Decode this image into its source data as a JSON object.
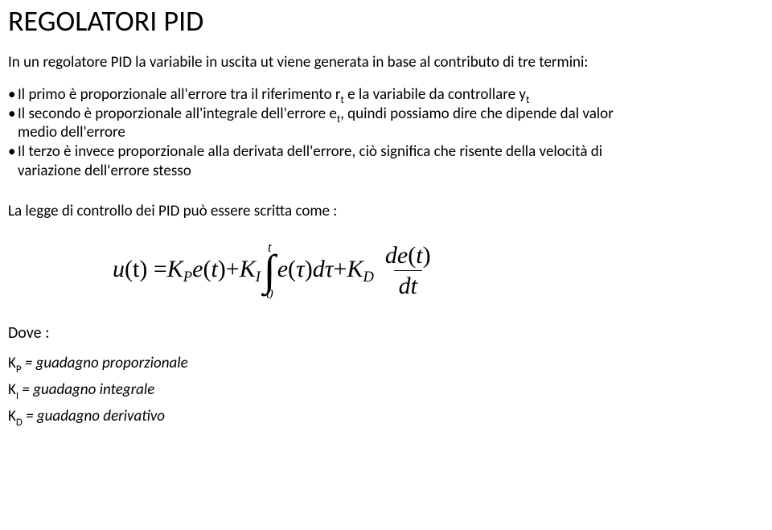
{
  "title": "REGOLATORI PID",
  "intro": "In un regolatore PID la variabile in uscita ut viene generata in base al contributo di tre termini:",
  "bullets": {
    "b1_pre": "Il primo è proporzionale all'errore tra il riferimento r",
    "b1_sub1": "t",
    "b1_mid": " e la variabile da controllare y",
    "b1_sub2": "t",
    "b2_pre": "Il secondo è proporzionale all'integrale dell'errore e",
    "b2_sub1": "t",
    "b2_mid": ", quindi possiamo dire che  dipende dal valor",
    "b2_cont": "medio dell'errore",
    "b3": "Il terzo è invece proporzionale alla derivata dell'errore, ciò significa che risente della velocità di",
    "b3_cont": "variazione dell'errore stesso"
  },
  "law_line": "La legge di controllo dei PID può essere scritta come :",
  "formula": {
    "u": "u",
    "t_arg": "(t) = ",
    "K": "K",
    "P": "P",
    "I": "I",
    "D": "D",
    "e": "e",
    "plus": " + ",
    "int_upper": "t",
    "int_lower": "0",
    "tau_arg": "(τ)dτ",
    "frac_num_d": "d",
    "frac_num_rest": "e(t)",
    "frac_den": "dt"
  },
  "dove": "Dove :",
  "k_lines": {
    "kp_k": "K",
    "kp_sub": "P",
    "kp_rest": " = guadagno proporzionale",
    "ki_k": "K",
    "ki_sub": "I",
    "ki_rest": " = guadagno integrale",
    "kd_k": "K",
    "kd_sub": "D",
    "kd_rest": " = guadagno derivativo"
  },
  "colors": {
    "text": "#000000",
    "background": "#ffffff"
  }
}
